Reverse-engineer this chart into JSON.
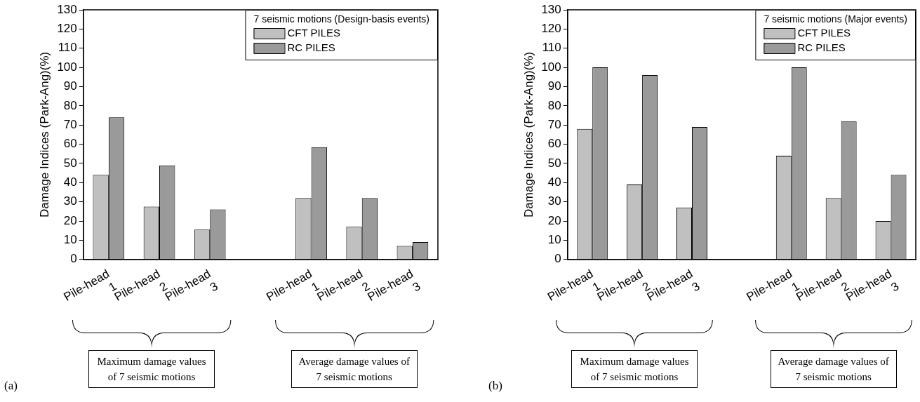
{
  "chart_data": [
    {
      "type": "bar",
      "ylabel": "Damage Indices (Park-Ang)(%)",
      "legend_title": "7 seismic motions (Design-basis events)",
      "legend": "top right",
      "grid": false,
      "categories": [
        "Pile-head\n1",
        "Pile-head\n2",
        "Pile-head\n3",
        null,
        "Pile-head\n1",
        "Pile-head\n2",
        "Pile-head\n3"
      ],
      "series": [
        {
          "name": "CFT PILES",
          "color": "#c0c0c0",
          "values": [
            44,
            27.5,
            15.5,
            null,
            32,
            17,
            7
          ]
        },
        {
          "name": "RC PILES",
          "color": "#9a9a9a",
          "values": [
            74,
            49,
            26,
            null,
            58.5,
            32,
            9
          ]
        }
      ],
      "ylim": [
        0,
        130
      ],
      "yticks": [
        0,
        10,
        20,
        30,
        40,
        50,
        60,
        70,
        80,
        90,
        100,
        110,
        120,
        130
      ],
      "annotations": [
        "(a)",
        "Maximum damage values of 7 seismic motions",
        "Average damage values of 7 seismic motions"
      ]
    },
    {
      "type": "bar",
      "ylabel": "Damage Indices (Park-Ang)(%)",
      "legend_title": "7 seismic motions (Major events)",
      "legend": "top right",
      "grid": false,
      "categories": [
        "Pile-head\n1",
        "Pile-head\n2",
        "Pile-head\n3",
        null,
        "Pile-head\n1",
        "Pile-head\n2",
        "Pile-head\n3"
      ],
      "series": [
        {
          "name": "CFT PILES",
          "color": "#c0c0c0",
          "values": [
            68,
            39,
            27,
            null,
            54,
            32,
            20
          ]
        },
        {
          "name": "RC PILES",
          "color": "#9a9a9a",
          "values": [
            100,
            96,
            69,
            null,
            100,
            72,
            44
          ]
        }
      ],
      "ylim": [
        0,
        130
      ],
      "yticks": [
        0,
        10,
        20,
        30,
        40,
        50,
        60,
        70,
        80,
        90,
        100,
        110,
        120,
        130
      ],
      "annotations": [
        "(b)",
        "Maximum damage values of 7 seismic motions",
        "Average damage values of 7 seismic motions"
      ]
    }
  ]
}
